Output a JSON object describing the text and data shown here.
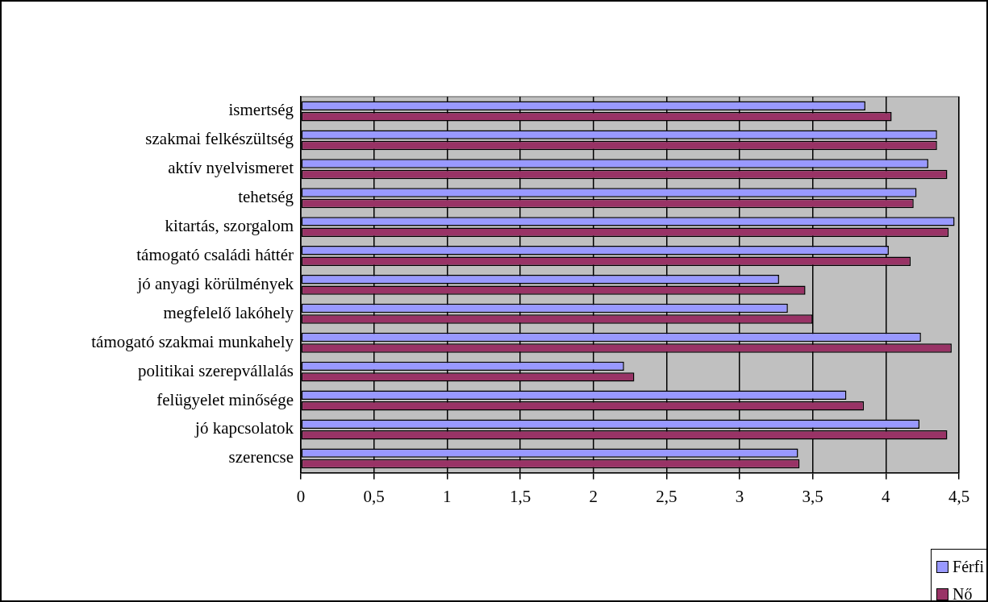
{
  "chart_data": {
    "type": "bar",
    "orientation": "horizontal",
    "categories": [
      "ismertség",
      "szakmai felkészültség",
      "aktív nyelvismeret",
      "tehetség",
      "kitartás, szorgalom",
      "támogató családi háttér",
      "jó anyagi körülmények",
      "megfelelő lakóhely",
      "támogató szakmai munkahely",
      "politikai szerepvállalás",
      "felügyelet minősége",
      "jó kapcsolatok",
      "szerencse"
    ],
    "series": [
      {
        "name": "Férfi",
        "color": "#9999ff",
        "values": [
          3.86,
          4.35,
          4.29,
          4.21,
          4.47,
          4.02,
          3.27,
          3.33,
          4.24,
          2.21,
          3.73,
          4.23,
          3.4
        ]
      },
      {
        "name": "Nő",
        "color": "#993366",
        "values": [
          4.04,
          4.35,
          4.42,
          4.19,
          4.43,
          4.17,
          3.45,
          3.5,
          4.45,
          2.28,
          3.85,
          4.42,
          3.41
        ]
      }
    ],
    "xlim": [
      0,
      4.5
    ],
    "xticks": [
      0,
      {
        "value": 0.5,
        "label": "0,5"
      },
      1,
      {
        "value": 1.5,
        "label": "1,5"
      },
      2,
      {
        "value": 2.5,
        "label": "2,5"
      },
      3,
      {
        "value": 3.5,
        "label": "3,5"
      },
      4,
      {
        "value": 4.5,
        "label": "4,5"
      }
    ],
    "grid": "x",
    "legend": "bottom right"
  }
}
